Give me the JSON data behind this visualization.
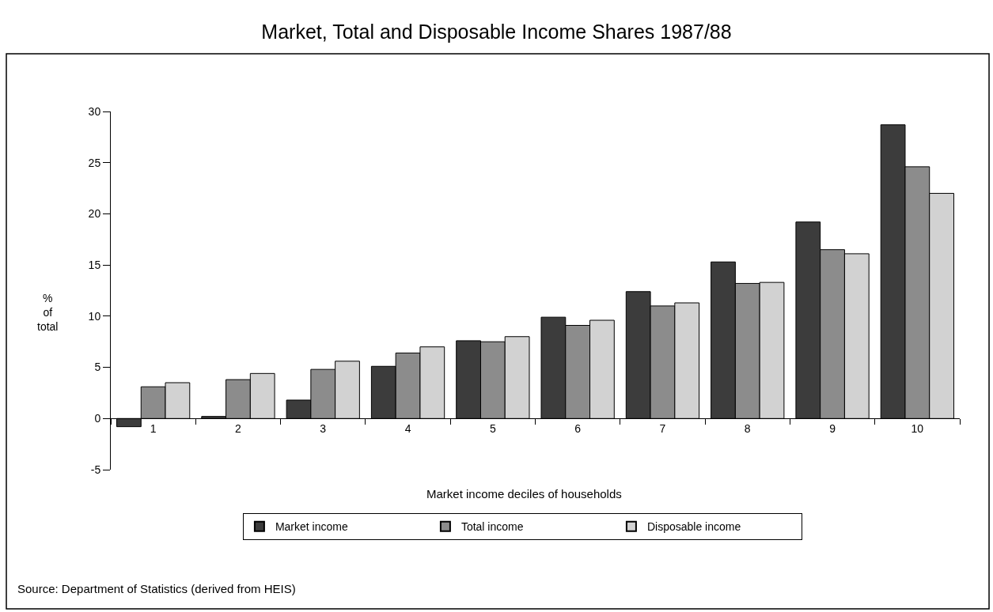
{
  "chart_data": {
    "type": "bar",
    "title": "Market, Total and Disposable Income Shares 1987/88",
    "xlabel": "Market income deciles of households",
    "ylabel": "% of total",
    "annotations": [
      "Source: Department of Statistics (derived from HEIS)"
    ],
    "categories": [
      "1",
      "2",
      "3",
      "4",
      "5",
      "6",
      "7",
      "8",
      "9",
      "10"
    ],
    "series": [
      {
        "name": "Market income",
        "color": "#3c3c3c",
        "values": [
          -0.8,
          0.2,
          1.8,
          5.1,
          7.6,
          9.9,
          12.4,
          15.3,
          19.2,
          28.7
        ]
      },
      {
        "name": "Total income",
        "color": "#8c8c8c",
        "values": [
          3.1,
          3.8,
          4.8,
          6.4,
          7.5,
          9.1,
          11.0,
          13.2,
          16.5,
          24.6
        ]
      },
      {
        "name": "Disposable income",
        "color": "#d2d2d2",
        "values": [
          3.5,
          4.4,
          5.6,
          7.0,
          8.0,
          9.6,
          11.3,
          13.3,
          16.1,
          22.0
        ]
      }
    ],
    "ylim": [
      -5,
      30
    ],
    "yticks": [
      -5,
      0,
      5,
      10,
      15,
      20,
      25,
      30
    ],
    "legend": "bottom"
  }
}
